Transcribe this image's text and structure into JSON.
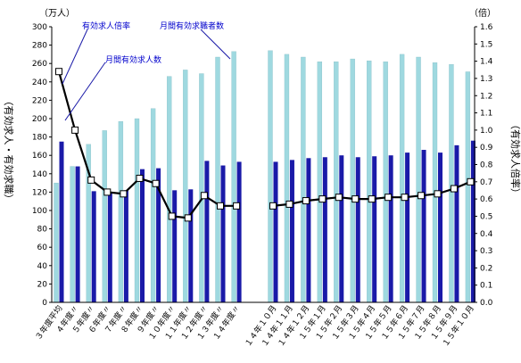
{
  "chart_data": {
    "type": "bar",
    "units": {
      "left": "（万人）",
      "right": "（倍）"
    },
    "ylabel_left": "（有効求人・有効求職）",
    "ylabel_right": "（有効求人倍率）",
    "left_axis": {
      "min": 0,
      "max": 300,
      "step": 20
    },
    "right_axis": {
      "min": 0,
      "max": 1.6,
      "step": 0.1
    },
    "categories": [
      "３年度平均",
      "４年度〃",
      "５年度〃",
      "６年度〃",
      "７年度〃",
      "８年度〃",
      "９年度〃",
      "１０年度〃",
      "１１年度〃",
      "１２年度〃",
      "１３年度〃",
      "１４年度〃",
      "１４年１０月",
      "１４年１１月",
      "１４年１２月",
      "１５年１月",
      "１５年２月",
      "１５年３月",
      "１５年４月",
      "１５年５月",
      "１５年６月",
      "１５年７月",
      "１５年８月",
      "１５年９月",
      "１５年１０月"
    ],
    "series": [
      {
        "name": "月間有効求職者数",
        "color": "#9fd9e0",
        "values": [
          130,
          148,
          172,
          187,
          197,
          200,
          211,
          246,
          253,
          249,
          267,
          273,
          274,
          270,
          267,
          262,
          262,
          265,
          263,
          262,
          270,
          267,
          261,
          259,
          251
        ]
      },
      {
        "name": "月間有効求人数",
        "color": "#1a1aa8",
        "values": [
          175,
          148,
          121,
          120,
          122,
          145,
          146,
          122,
          123,
          154,
          149,
          153,
          153,
          155,
          157,
          158,
          160,
          158,
          159,
          160,
          163,
          166,
          163,
          171,
          176
        ]
      },
      {
        "name": "有効求人倍率",
        "type": "line",
        "axis": "right",
        "values": [
          1.34,
          1.0,
          0.71,
          0.64,
          0.63,
          0.72,
          0.69,
          0.5,
          0.49,
          0.62,
          0.56,
          0.56,
          0.56,
          0.57,
          0.59,
          0.6,
          0.61,
          0.6,
          0.6,
          0.61,
          0.61,
          0.62,
          0.63,
          0.66,
          0.7
        ]
      }
    ]
  }
}
